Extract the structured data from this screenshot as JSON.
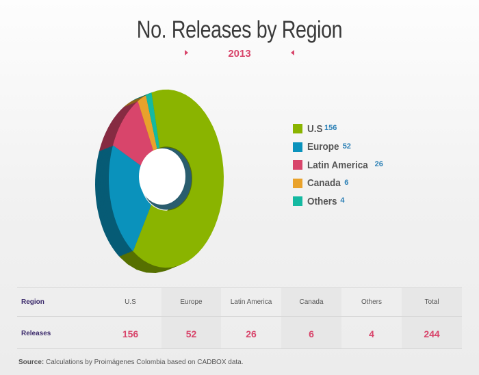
{
  "header": {
    "title": "No. Releases by Region",
    "year": "2013"
  },
  "colors": {
    "us": "#8ab400",
    "europe": "#0a92bc",
    "latin_america": "#d8456b",
    "canada": "#e9a22b",
    "others": "#14b9a1"
  },
  "chart_data": {
    "type": "pie",
    "variant": "3d-donut",
    "title": "No. Releases by Region",
    "subtitle": "2013",
    "categories": [
      "U.S",
      "Europe",
      "Latin America",
      "Canada",
      "Others"
    ],
    "values": [
      156,
      52,
      26,
      6,
      4
    ],
    "total": 244,
    "legend_position": "right"
  },
  "legend": {
    "items": [
      {
        "label": "U.S",
        "value": "156",
        "color": "#8ab400"
      },
      {
        "label": "Europe",
        "value": "52",
        "color": "#0a92bc"
      },
      {
        "label": "Latin America",
        "value": "26",
        "color": "#d8456b"
      },
      {
        "label": "Canada",
        "value": "6",
        "color": "#e9a22b"
      },
      {
        "label": "Others",
        "value": "4",
        "color": "#14b9a1"
      }
    ]
  },
  "table": {
    "row_header_1": "Region",
    "row_header_2": "Releases",
    "columns": [
      {
        "header": "U.S",
        "value": "156"
      },
      {
        "header": "Europe",
        "value": "52"
      },
      {
        "header": "Latin America",
        "value": "26"
      },
      {
        "header": "Canada",
        "value": "6"
      },
      {
        "header": "Others",
        "value": "4"
      },
      {
        "header": "Total",
        "value": "244"
      }
    ]
  },
  "footer": {
    "source_label": "Source:",
    "source_text": "Calculations by Proimágenes Colombia based on CADBOX data."
  }
}
